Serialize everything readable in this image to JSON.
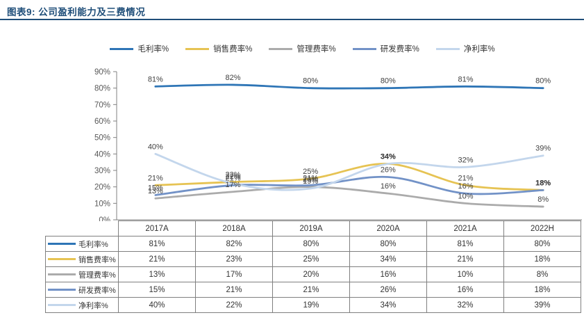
{
  "header": {
    "title": "图表9: 公司盈利能力及三费情况",
    "accent_color": "#1F4E79"
  },
  "chart_data": {
    "type": "line",
    "title": "",
    "xlabel": "",
    "ylabel": "",
    "categories": [
      "2017A",
      "2018A",
      "2019A",
      "2020A",
      "2021A",
      "2022H"
    ],
    "series": [
      {
        "name": "毛利率%",
        "slug": "gross-margin",
        "color": "#2E75B6",
        "values": [
          81,
          82,
          80,
          80,
          81,
          80
        ]
      },
      {
        "name": "销售费率%",
        "slug": "sales-expense-ratio",
        "color": "#E6C353",
        "values": [
          21,
          23,
          25,
          34,
          21,
          18
        ]
      },
      {
        "name": "管理费率%",
        "slug": "admin-expense-ratio",
        "color": "#ABABAB",
        "values": [
          13,
          17,
          20,
          16,
          10,
          8
        ]
      },
      {
        "name": "研发费率%",
        "slug": "rd-expense-ratio",
        "color": "#7292C7",
        "values": [
          15,
          21,
          21,
          26,
          16,
          18
        ]
      },
      {
        "name": "净利率%",
        "slug": "net-margin",
        "color": "#C3D6EC",
        "values": [
          40,
          22,
          19,
          34,
          32,
          39
        ]
      }
    ],
    "ylim": [
      0,
      90
    ],
    "ytick_labels": [
      "0%",
      "10%",
      "20%",
      "30%",
      "40%",
      "50%",
      "60%",
      "70%",
      "80%",
      "90%"
    ],
    "grid": false,
    "legend_position": "top",
    "data_labels": true,
    "label_suffix": "%",
    "axis_color": "#808080",
    "label_color": "#404040",
    "tick_color": "#595959"
  }
}
